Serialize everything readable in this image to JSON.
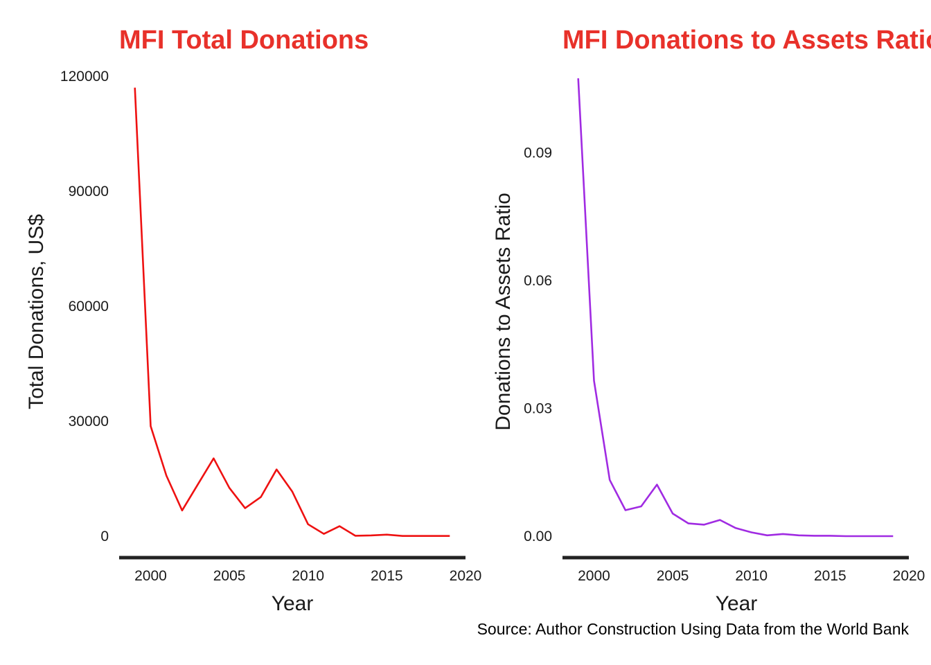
{
  "colors": {
    "title": "#e8312a",
    "left_line": "#ee1111",
    "right_line": "#a02be2",
    "axis": "#222222"
  },
  "caption": "Source: Author Construction Using Data from the World Bank",
  "chart_data": [
    {
      "type": "line",
      "title": "MFI Total Donations",
      "xlabel": "Year",
      "ylabel": "Total Donations, US$",
      "xlim": [
        1998,
        2020
      ],
      "ylim": [
        0,
        120000
      ],
      "x_ticks": [
        2000,
        2005,
        2010,
        2015,
        2020
      ],
      "y_ticks": [
        0,
        30000,
        60000,
        90000,
        120000
      ],
      "x_tick_labels": [
        "2000",
        "2005",
        "2010",
        "2015",
        "2020"
      ],
      "y_tick_labels": [
        "0",
        "30000",
        "60000",
        "90000",
        "120000"
      ],
      "grid": false,
      "series": [
        {
          "color": "#ee1111",
          "x": [
            1999,
            2000,
            2001,
            2002,
            2003,
            2004,
            2005,
            2006,
            2007,
            2008,
            2009,
            2010,
            2011,
            2012,
            2013,
            2014,
            2015,
            2016,
            2017,
            2018,
            2019
          ],
          "y": [
            117000,
            28700,
            15800,
            6700,
            13500,
            20300,
            12600,
            7300,
            10200,
            17400,
            11600,
            3100,
            600,
            2600,
            100,
            200,
            400,
            50,
            50,
            50,
            50
          ]
        }
      ]
    },
    {
      "type": "line",
      "title": "MFI Donations to Assets Ratio",
      "xlabel": "Year",
      "ylabel": "Donations to Assets Ratio",
      "xlim": [
        1998,
        2020
      ],
      "ylim": [
        0,
        0.108
      ],
      "x_ticks": [
        2000,
        2005,
        2010,
        2015,
        2020
      ],
      "y_ticks": [
        0,
        0.03,
        0.06,
        0.09
      ],
      "x_tick_labels": [
        "2000",
        "2005",
        "2010",
        "2015",
        "2020"
      ],
      "y_tick_labels": [
        "0.00",
        "0.03",
        "0.06",
        "0.09"
      ],
      "grid": false,
      "series": [
        {
          "color": "#a02be2",
          "x": [
            1999,
            2000,
            2001,
            2002,
            2003,
            2004,
            2005,
            2006,
            2007,
            2008,
            2009,
            2010,
            2011,
            2012,
            2013,
            2014,
            2015,
            2016,
            2017,
            2018,
            2019
          ],
          "y": [
            0.1075,
            0.0365,
            0.0132,
            0.0061,
            0.007,
            0.0121,
            0.0053,
            0.003,
            0.0027,
            0.0038,
            0.0019,
            0.0009,
            0.0002,
            0.0005,
            0.0002,
            0.0001,
            0.0001,
            0.0,
            0.0,
            0.0,
            0.0
          ]
        }
      ]
    }
  ]
}
